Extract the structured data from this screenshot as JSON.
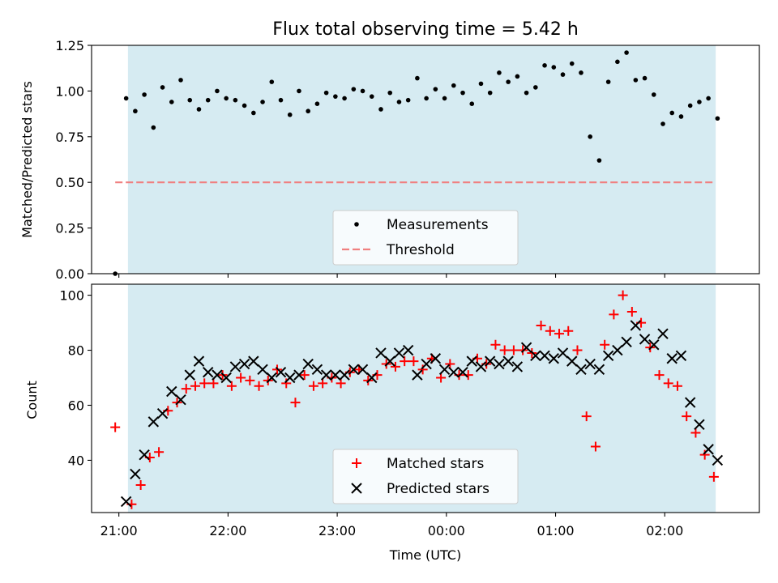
{
  "figure": {
    "title": "Flux total observing time = 5.42 h"
  },
  "colors": {
    "band": "#add8e6",
    "measurement": "#000000",
    "threshold": "#f08080",
    "matched": "#ff0000",
    "predicted": "#000000"
  },
  "chart_data": [
    {
      "type": "scatter",
      "ylabel": "Matched/Predicted stars",
      "ylim": [
        0,
        1.25
      ],
      "xlim": [
        "20:45",
        "02:52"
      ],
      "yticks": [
        "0.00",
        "0.25",
        "0.50",
        "0.75",
        "1.00",
        "1.25"
      ],
      "legend_position": "lower center",
      "observing_band": [
        "21:05",
        "02:28"
      ],
      "threshold": {
        "name": "Threshold",
        "value": 0.5,
        "x_range": [
          "20:58",
          "02:28"
        ]
      },
      "series": [
        {
          "name": "Measurements",
          "points": [
            [
              "20:58",
              0.0
            ],
            [
              "21:04",
              0.96
            ],
            [
              "21:09",
              0.89
            ],
            [
              "21:14",
              0.98
            ],
            [
              "21:19",
              0.8
            ],
            [
              "21:24",
              1.02
            ],
            [
              "21:29",
              0.94
            ],
            [
              "21:34",
              1.06
            ],
            [
              "21:39",
              0.95
            ],
            [
              "21:44",
              0.9
            ],
            [
              "21:49",
              0.95
            ],
            [
              "21:54",
              1.0
            ],
            [
              "21:59",
              0.96
            ],
            [
              "22:04",
              0.95
            ],
            [
              "22:09",
              0.92
            ],
            [
              "22:14",
              0.88
            ],
            [
              "22:19",
              0.94
            ],
            [
              "22:24",
              1.05
            ],
            [
              "22:29",
              0.95
            ],
            [
              "22:34",
              0.87
            ],
            [
              "22:39",
              1.0
            ],
            [
              "22:44",
              0.89
            ],
            [
              "22:49",
              0.93
            ],
            [
              "22:54",
              0.99
            ],
            [
              "22:59",
              0.97
            ],
            [
              "23:04",
              0.96
            ],
            [
              "23:09",
              1.01
            ],
            [
              "23:14",
              1.0
            ],
            [
              "23:19",
              0.97
            ],
            [
              "23:24",
              0.9
            ],
            [
              "23:29",
              0.99
            ],
            [
              "23:34",
              0.94
            ],
            [
              "23:39",
              0.95
            ],
            [
              "23:44",
              1.07
            ],
            [
              "23:49",
              0.96
            ],
            [
              "23:54",
              1.01
            ],
            [
              "23:59",
              0.96
            ],
            [
              "00:04",
              1.03
            ],
            [
              "00:09",
              0.99
            ],
            [
              "00:14",
              0.93
            ],
            [
              "00:19",
              1.04
            ],
            [
              "00:24",
              0.99
            ],
            [
              "00:29",
              1.1
            ],
            [
              "00:34",
              1.05
            ],
            [
              "00:39",
              1.08
            ],
            [
              "00:44",
              0.99
            ],
            [
              "00:49",
              1.02
            ],
            [
              "00:54",
              1.14
            ],
            [
              "00:59",
              1.13
            ],
            [
              "01:04",
              1.09
            ],
            [
              "01:09",
              1.15
            ],
            [
              "01:14",
              1.1
            ],
            [
              "01:19",
              0.75
            ],
            [
              "01:24",
              0.62
            ],
            [
              "01:29",
              1.05
            ],
            [
              "01:34",
              1.16
            ],
            [
              "01:39",
              1.21
            ],
            [
              "01:44",
              1.06
            ],
            [
              "01:49",
              1.07
            ],
            [
              "01:54",
              0.98
            ],
            [
              "01:59",
              0.82
            ],
            [
              "02:04",
              0.88
            ],
            [
              "02:09",
              0.86
            ],
            [
              "02:14",
              0.92
            ],
            [
              "02:19",
              0.94
            ],
            [
              "02:24",
              0.96
            ],
            [
              "02:29",
              0.85
            ]
          ]
        }
      ]
    },
    {
      "type": "scatter",
      "ylabel": "Count",
      "xlabel": "Time (UTC)",
      "ylim": [
        21,
        104
      ],
      "xlim": [
        "20:45",
        "02:52"
      ],
      "yticks": [
        "40",
        "60",
        "80",
        "100"
      ],
      "xticks": [
        "21:00",
        "22:00",
        "23:00",
        "00:00",
        "01:00",
        "02:00"
      ],
      "legend_position": "lower center",
      "observing_band": [
        "21:05",
        "02:28"
      ],
      "series": [
        {
          "name": "Matched stars",
          "marker": "+",
          "points": [
            [
              "20:58",
              52
            ],
            [
              "21:07",
              24
            ],
            [
              "21:12",
              31
            ],
            [
              "21:17",
              41
            ],
            [
              "21:22",
              43
            ],
            [
              "21:27",
              58
            ],
            [
              "21:32",
              61
            ],
            [
              "21:37",
              66
            ],
            [
              "21:42",
              67
            ],
            [
              "21:47",
              68
            ],
            [
              "21:52",
              68
            ],
            [
              "21:57",
              71
            ],
            [
              "22:02",
              67
            ],
            [
              "22:07",
              70
            ],
            [
              "22:12",
              69
            ],
            [
              "22:17",
              67
            ],
            [
              "22:22",
              69
            ],
            [
              "22:27",
              73
            ],
            [
              "22:32",
              68
            ],
            [
              "22:37",
              61
            ],
            [
              "22:42",
              71
            ],
            [
              "22:47",
              67
            ],
            [
              "22:52",
              68
            ],
            [
              "22:57",
              70
            ],
            [
              "23:02",
              68
            ],
            [
              "23:07",
              72
            ],
            [
              "23:12",
              73
            ],
            [
              "23:17",
              69
            ],
            [
              "23:22",
              71
            ],
            [
              "23:27",
              75
            ],
            [
              "23:32",
              74
            ],
            [
              "23:37",
              76
            ],
            [
              "23:42",
              76
            ],
            [
              "23:47",
              73
            ],
            [
              "23:52",
              77
            ],
            [
              "23:57",
              70
            ],
            [
              "00:02",
              75
            ],
            [
              "00:07",
              71
            ],
            [
              "00:12",
              71
            ],
            [
              "00:17",
              77
            ],
            [
              "00:22",
              75
            ],
            [
              "00:27",
              82
            ],
            [
              "00:32",
              80
            ],
            [
              "00:37",
              80
            ],
            [
              "00:42",
              80
            ],
            [
              "00:47",
              79
            ],
            [
              "00:52",
              89
            ],
            [
              "00:57",
              87
            ],
            [
              "01:02",
              86
            ],
            [
              "01:07",
              87
            ],
            [
              "01:12",
              80
            ],
            [
              "01:17",
              56
            ],
            [
              "01:22",
              45
            ],
            [
              "01:27",
              82
            ],
            [
              "01:32",
              93
            ],
            [
              "01:37",
              100
            ],
            [
              "01:42",
              94
            ],
            [
              "01:47",
              90
            ],
            [
              "01:52",
              81
            ],
            [
              "01:57",
              71
            ],
            [
              "02:02",
              68
            ],
            [
              "02:07",
              67
            ],
            [
              "02:12",
              56
            ],
            [
              "02:17",
              50
            ],
            [
              "02:22",
              42
            ],
            [
              "02:27",
              34
            ]
          ]
        },
        {
          "name": "Predicted stars",
          "marker": "x",
          "points": [
            [
              "21:04",
              25
            ],
            [
              "21:09",
              35
            ],
            [
              "21:14",
              42
            ],
            [
              "21:19",
              54
            ],
            [
              "21:24",
              57
            ],
            [
              "21:29",
              65
            ],
            [
              "21:34",
              62
            ],
            [
              "21:39",
              71
            ],
            [
              "21:44",
              76
            ],
            [
              "21:49",
              72
            ],
            [
              "21:54",
              71
            ],
            [
              "21:59",
              70
            ],
            [
              "22:04",
              74
            ],
            [
              "22:09",
              75
            ],
            [
              "22:14",
              76
            ],
            [
              "22:19",
              73
            ],
            [
              "22:24",
              70
            ],
            [
              "22:29",
              72
            ],
            [
              "22:34",
              70
            ],
            [
              "22:39",
              71
            ],
            [
              "22:44",
              75
            ],
            [
              "22:49",
              73
            ],
            [
              "22:54",
              71
            ],
            [
              "22:59",
              71
            ],
            [
              "23:04",
              71
            ],
            [
              "23:09",
              73
            ],
            [
              "23:14",
              73
            ],
            [
              "23:19",
              70
            ],
            [
              "23:24",
              79
            ],
            [
              "23:29",
              76
            ],
            [
              "23:34",
              79
            ],
            [
              "23:39",
              80
            ],
            [
              "23:44",
              71
            ],
            [
              "23:49",
              75
            ],
            [
              "23:54",
              77
            ],
            [
              "23:59",
              73
            ],
            [
              "00:04",
              72
            ],
            [
              "00:09",
              72
            ],
            [
              "00:14",
              76
            ],
            [
              "00:19",
              74
            ],
            [
              "00:24",
              76
            ],
            [
              "00:29",
              75
            ],
            [
              "00:34",
              76
            ],
            [
              "00:39",
              74
            ],
            [
              "00:44",
              81
            ],
            [
              "00:49",
              78
            ],
            [
              "00:54",
              78
            ],
            [
              "00:59",
              77
            ],
            [
              "01:04",
              79
            ],
            [
              "01:09",
              76
            ],
            [
              "01:14",
              73
            ],
            [
              "01:19",
              75
            ],
            [
              "01:24",
              73
            ],
            [
              "01:29",
              78
            ],
            [
              "01:34",
              80
            ],
            [
              "01:39",
              83
            ],
            [
              "01:44",
              89
            ],
            [
              "01:49",
              84
            ],
            [
              "01:54",
              82
            ],
            [
              "01:59",
              86
            ],
            [
              "02:04",
              77
            ],
            [
              "02:09",
              78
            ],
            [
              "02:14",
              61
            ],
            [
              "02:19",
              53
            ],
            [
              "02:24",
              44
            ],
            [
              "02:29",
              40
            ]
          ]
        }
      ]
    }
  ]
}
